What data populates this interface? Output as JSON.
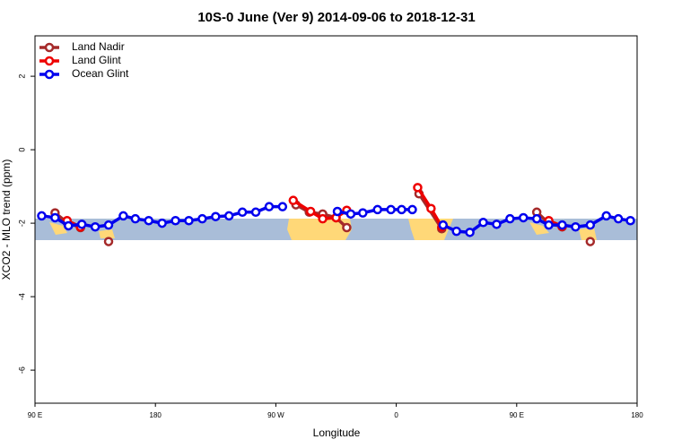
{
  "chart_data": {
    "type": "line",
    "title": "10S-0 June (Ver 9)   2014-09-06 to 2018-12-31",
    "x_label": "Longitude",
    "y_label": "XCO2 - MLO trend (ppm)",
    "xlim": [
      90,
      540
    ],
    "xticks": [
      {
        "value": 90,
        "label": "90 E"
      },
      180,
      {
        "value": 270,
        "label": "90 W"
      },
      {
        "value": 360,
        "label": "0"
      },
      {
        "value": 450,
        "label": "90 E"
      },
      {
        "value": 540,
        "label": "180"
      }
    ],
    "ylim": [
      -6.9,
      3.1
    ],
    "yticks": [
      2,
      0,
      -2,
      -4,
      -6
    ],
    "legend": "top-left",
    "series": [
      {
        "name": "Land Nadir",
        "color": "#a52a2a",
        "x": [
          105,
          114,
          124,
          null,
          145,
          null,
          285,
          295,
          305,
          315,
          323,
          null,
          377,
          394,
          null,
          465,
          474,
          484,
          null,
          505
        ],
        "values": [
          -1.72,
          -1.98,
          -2.12,
          null,
          -2.5,
          null,
          -1.5,
          -1.7,
          -1.75,
          -1.85,
          -2.12,
          null,
          -1.2,
          -2.15,
          null,
          -1.7,
          -2.0,
          -2.1,
          null,
          -2.5
        ]
      },
      {
        "name": "Land Glint",
        "color": "#ee0000",
        "x": [
          114,
          124,
          null,
          283,
          296,
          305,
          315,
          323,
          null,
          376,
          386,
          394,
          null,
          474,
          484
        ],
        "values": [
          -1.93,
          -2.1,
          null,
          -1.38,
          -1.68,
          -1.88,
          -1.85,
          -1.65,
          null,
          -1.03,
          -1.6,
          -2.1,
          null,
          -1.93,
          -2.08
        ]
      },
      {
        "name": "Ocean Glint",
        "color": "#0000ee",
        "x": [
          95,
          105,
          115,
          125,
          135,
          145,
          156,
          165,
          175,
          185,
          195,
          205,
          215,
          225,
          235,
          245,
          255,
          265,
          275,
          null,
          316,
          326,
          335,
          346,
          356,
          364,
          372,
          null,
          395,
          405,
          415,
          425,
          435,
          445,
          455,
          465,
          474,
          484,
          494,
          505,
          517,
          526,
          535
        ],
        "values": [
          -1.8,
          -1.85,
          -2.07,
          -2.03,
          -2.1,
          -2.05,
          -1.8,
          -1.88,
          -1.93,
          -2.0,
          -1.93,
          -1.93,
          -1.88,
          -1.82,
          -1.8,
          -1.7,
          -1.7,
          -1.55,
          -1.55,
          null,
          -1.68,
          -1.75,
          -1.72,
          -1.63,
          -1.63,
          -1.63,
          -1.63,
          null,
          -2.05,
          -2.22,
          -2.25,
          -1.98,
          -2.03,
          -1.88,
          -1.85,
          -1.88,
          -2.05,
          -2.05,
          -2.1,
          -2.05,
          -1.8,
          -1.88,
          -1.93
        ]
      }
    ]
  }
}
